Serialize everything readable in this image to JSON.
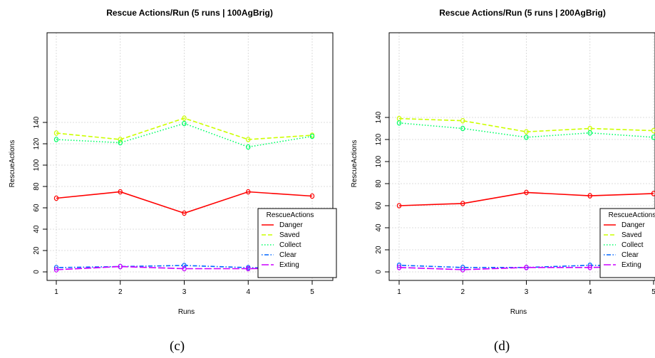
{
  "captions": [
    "(c)",
    "(d)"
  ],
  "chart_data": [
    {
      "type": "line",
      "title": "Rescue Actions/Run  (5 runs | 100AgBrig)",
      "xlabel": "Runs",
      "ylabel": "RescueActions",
      "x": [
        1,
        2,
        3,
        4,
        5
      ],
      "xticks": [
        "1",
        "2",
        "3",
        "4",
        "5"
      ],
      "yticks": [
        "0",
        "20",
        "40",
        "60",
        "80",
        "100",
        "120",
        "140"
      ],
      "ylim": [
        0,
        145
      ],
      "grid": true,
      "legend": {
        "title": "RescueActions",
        "position": "bottom-right"
      },
      "series": [
        {
          "name": "Danger",
          "color": "#ff0000",
          "dash": "solid",
          "values": [
            69,
            75,
            55,
            75,
            71
          ]
        },
        {
          "name": "Saved",
          "color": "#ccff00",
          "dash": "dashed",
          "values": [
            130,
            124,
            144,
            124,
            128
          ]
        },
        {
          "name": "Collect",
          "color": "#00ff66",
          "dash": "dotted",
          "values": [
            124,
            121,
            139,
            117,
            127
          ]
        },
        {
          "name": "Clear",
          "color": "#0066ff",
          "dash": "dotdash",
          "values": [
            4,
            5,
            6,
            4,
            3
          ]
        },
        {
          "name": "Exting",
          "color": "#cc00ff",
          "dash": "longdash",
          "values": [
            2,
            5,
            3,
            3,
            4
          ]
        }
      ]
    },
    {
      "type": "line",
      "title": "Rescue Actions/Run  (5 runs | 200AgBrig)",
      "xlabel": "Runs",
      "ylabel": "RescueActions",
      "x": [
        1,
        2,
        3,
        4,
        5
      ],
      "xticks": [
        "1",
        "2",
        "3",
        "4",
        "5"
      ],
      "yticks": [
        "0",
        "20",
        "40",
        "60",
        "80",
        "100",
        "120",
        "140"
      ],
      "ylim": [
        0,
        142
      ],
      "grid": true,
      "legend": {
        "title": "RescueActions",
        "position": "bottom-right"
      },
      "series": [
        {
          "name": "Danger",
          "color": "#ff0000",
          "dash": "solid",
          "values": [
            60,
            62,
            72,
            69,
            71
          ]
        },
        {
          "name": "Saved",
          "color": "#ccff00",
          "dash": "dashed",
          "values": [
            139,
            137,
            127,
            130,
            128
          ]
        },
        {
          "name": "Collect",
          "color": "#00ff66",
          "dash": "dotted",
          "values": [
            135,
            130,
            122,
            126,
            122
          ]
        },
        {
          "name": "Clear",
          "color": "#0066ff",
          "dash": "dotdash",
          "values": [
            6,
            4,
            4,
            6,
            5
          ]
        },
        {
          "name": "Exting",
          "color": "#cc00ff",
          "dash": "longdash",
          "values": [
            4,
            2,
            4,
            4,
            5
          ]
        }
      ]
    }
  ]
}
